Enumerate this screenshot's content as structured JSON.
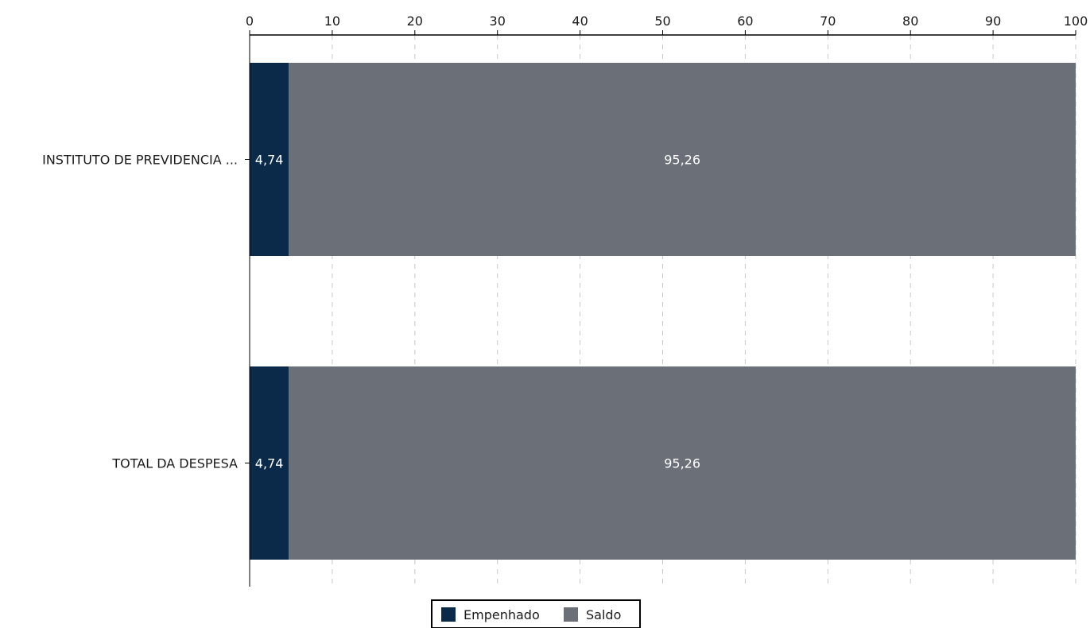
{
  "colors": {
    "empenhado": "#0b2a4a",
    "saldo": "#6b7078",
    "grid": "#c8c8c8",
    "axis": "#000000"
  },
  "chart_data": {
    "type": "bar",
    "orientation": "horizontal",
    "stacked": true,
    "categories": [
      "INSTITUTO DE PREVIDENCIA ...",
      "TOTAL DA DESPESA"
    ],
    "series": [
      {
        "name": "Empenhado",
        "values": [
          4.74,
          4.74
        ],
        "labels": [
          "4,74",
          "4,74"
        ]
      },
      {
        "name": "Saldo",
        "values": [
          95.26,
          95.26
        ],
        "labels": [
          "95,26",
          "95,26"
        ]
      }
    ],
    "xlim": [
      0,
      100
    ],
    "xticks": [
      0,
      10,
      20,
      30,
      40,
      50,
      60,
      70,
      80,
      90,
      100
    ],
    "x_axis_position": "top",
    "grid": "vertical dashed",
    "legend_position": "bottom-center",
    "title": "",
    "xlabel": "",
    "ylabel": ""
  }
}
